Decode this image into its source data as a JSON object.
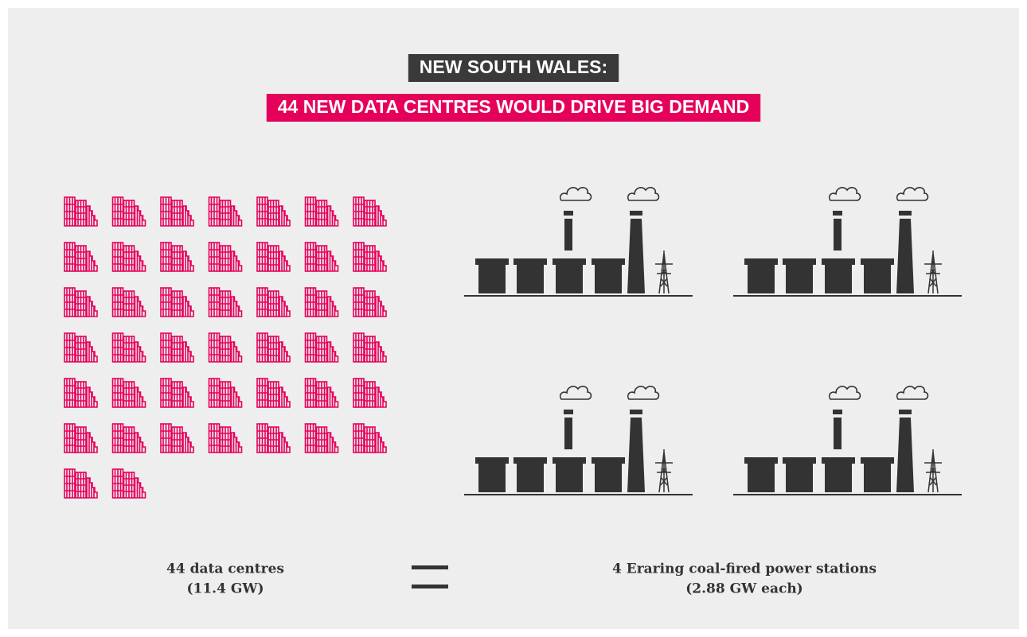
{
  "header": {
    "line1": "NEW SOUTH WALES:",
    "line2": "44 NEW DATA CENTRES WOULD DRIVE BIG DEMAND"
  },
  "left": {
    "count": 44,
    "label": "44 data centres",
    "sub": "(11.4 GW)"
  },
  "right": {
    "count": 4,
    "label": "4 Eraring coal-fired power stations",
    "sub": "(2.88 GW each)"
  }
}
